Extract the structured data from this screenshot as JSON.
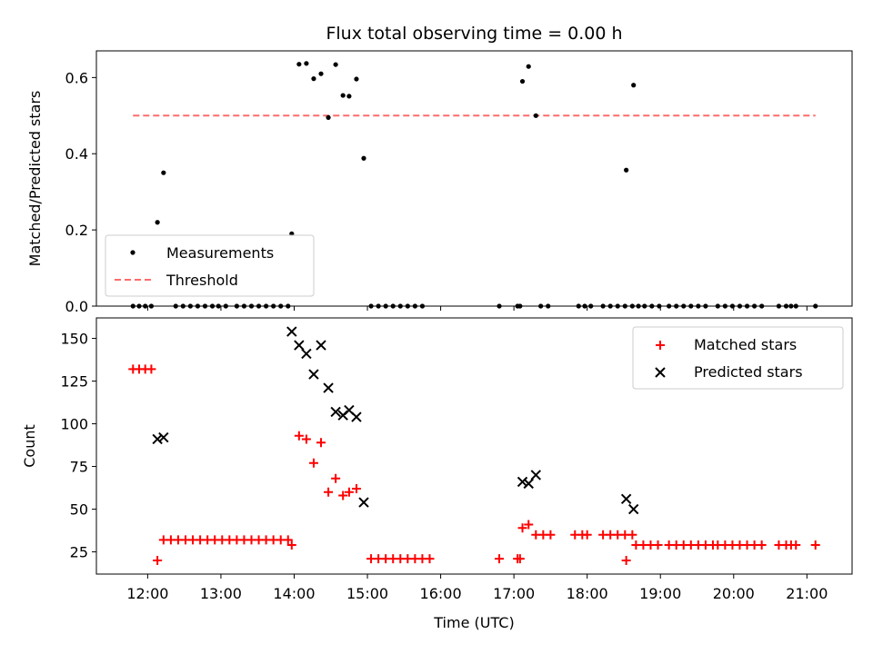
{
  "chart_data": [
    {
      "type": "scatter",
      "title": "Flux total observing time = 0.00 h",
      "xlabel": "",
      "ylabel": "Matched/Predicted stars",
      "xlim": [
        "11:18",
        "21:37"
      ],
      "ylim": [
        0,
        0.67
      ],
      "yticks": [
        0.0,
        0.2,
        0.4,
        0.6
      ],
      "grid": false,
      "legend_position": "lower-left",
      "colors": {
        "measurements": "#000000",
        "threshold": "#ff6b6b"
      },
      "series": [
        {
          "name": "Measurements",
          "marker": "dot",
          "points": [
            [
              "11:48",
              0.0
            ],
            [
              "11:53",
              0.0
            ],
            [
              "11:58",
              0.0
            ],
            [
              "12:03",
              0.0
            ],
            [
              "12:08",
              0.22
            ],
            [
              "12:13",
              0.35
            ],
            [
              "12:23",
              0.0
            ],
            [
              "12:29",
              0.0
            ],
            [
              "12:35",
              0.0
            ],
            [
              "12:41",
              0.0
            ],
            [
              "12:47",
              0.0
            ],
            [
              "12:53",
              0.0
            ],
            [
              "12:58",
              0.0
            ],
            [
              "13:04",
              0.0
            ],
            [
              "13:13",
              0.0
            ],
            [
              "13:19",
              0.0
            ],
            [
              "13:25",
              0.0
            ],
            [
              "13:31",
              0.0
            ],
            [
              "13:37",
              0.0
            ],
            [
              "13:43",
              0.0
            ],
            [
              "13:49",
              0.0
            ],
            [
              "13:55",
              0.0
            ],
            [
              "13:58",
              0.19
            ],
            [
              "14:04",
              0.635
            ],
            [
              "14:10",
              0.637
            ],
            [
              "14:16",
              0.597
            ],
            [
              "14:22",
              0.61
            ],
            [
              "14:28",
              0.495
            ],
            [
              "14:34",
              0.634
            ],
            [
              "14:40",
              0.553
            ],
            [
              "14:45",
              0.551
            ],
            [
              "14:51",
              0.596
            ],
            [
              "14:57",
              0.388
            ],
            [
              "15:03",
              0.0
            ],
            [
              "15:09",
              0.0
            ],
            [
              "15:15",
              0.0
            ],
            [
              "15:21",
              0.0
            ],
            [
              "15:27",
              0.0
            ],
            [
              "15:33",
              0.0
            ],
            [
              "15:39",
              0.0
            ],
            [
              "15:45",
              0.0
            ],
            [
              "16:48",
              0.0
            ],
            [
              "17:03",
              0.0
            ],
            [
              "17:05",
              0.0
            ],
            [
              "17:07",
              0.59
            ],
            [
              "17:12",
              0.629
            ],
            [
              "17:18",
              0.5
            ],
            [
              "17:22",
              0.0
            ],
            [
              "17:28",
              0.0
            ],
            [
              "17:53",
              0.0
            ],
            [
              "17:58",
              0.0
            ],
            [
              "18:03",
              0.0
            ],
            [
              "18:13",
              0.0
            ],
            [
              "18:19",
              0.0
            ],
            [
              "18:25",
              0.0
            ],
            [
              "18:31",
              0.0
            ],
            [
              "18:37",
              0.0
            ],
            [
              "18:42",
              0.0
            ],
            [
              "18:32",
              0.357
            ],
            [
              "18:38",
              0.58
            ],
            [
              "18:47",
              0.0
            ],
            [
              "18:53",
              0.0
            ],
            [
              "18:59",
              0.0
            ],
            [
              "19:07",
              0.0
            ],
            [
              "19:13",
              0.0
            ],
            [
              "19:19",
              0.0
            ],
            [
              "19:25",
              0.0
            ],
            [
              "19:31",
              0.0
            ],
            [
              "19:37",
              0.0
            ],
            [
              "19:47",
              0.0
            ],
            [
              "19:53",
              0.0
            ],
            [
              "19:59",
              0.0
            ],
            [
              "20:05",
              0.0
            ],
            [
              "20:11",
              0.0
            ],
            [
              "20:17",
              0.0
            ],
            [
              "20:23",
              0.0
            ],
            [
              "20:37",
              0.0
            ],
            [
              "20:43",
              0.0
            ],
            [
              "20:47",
              0.0
            ],
            [
              "20:51",
              0.0
            ],
            [
              "21:07",
              0.0
            ]
          ]
        },
        {
          "name": "Threshold",
          "style": "dashed",
          "points": [
            [
              "11:48",
              0.5
            ],
            [
              "21:07",
              0.5
            ]
          ]
        }
      ]
    },
    {
      "type": "scatter",
      "title": "",
      "xlabel": "Time (UTC)",
      "ylabel": "Count",
      "xlim": [
        "11:18",
        "21:37"
      ],
      "ylim": [
        12,
        162
      ],
      "yticks": [
        25,
        50,
        75,
        100,
        125,
        150
      ],
      "xticks": [
        "12:00",
        "13:00",
        "14:00",
        "15:00",
        "16:00",
        "17:00",
        "18:00",
        "19:00",
        "20:00",
        "21:00"
      ],
      "grid": false,
      "legend_position": "top-right",
      "colors": {
        "matched": "#ff0000",
        "predicted": "#000000"
      },
      "series": [
        {
          "name": "Matched stars",
          "marker": "plus",
          "points": [
            [
              "11:48",
              132
            ],
            [
              "11:53",
              132
            ],
            [
              "11:58",
              132
            ],
            [
              "12:03",
              132
            ],
            [
              "12:08",
              20
            ],
            [
              "12:13",
              32
            ],
            [
              "12:19",
              32
            ],
            [
              "12:25",
              32
            ],
            [
              "12:31",
              32
            ],
            [
              "12:37",
              32
            ],
            [
              "12:43",
              32
            ],
            [
              "12:49",
              32
            ],
            [
              "12:55",
              32
            ],
            [
              "13:01",
              32
            ],
            [
              "13:07",
              32
            ],
            [
              "13:13",
              32
            ],
            [
              "13:19",
              32
            ],
            [
              "13:25",
              32
            ],
            [
              "13:31",
              32
            ],
            [
              "13:37",
              32
            ],
            [
              "13:43",
              32
            ],
            [
              "13:49",
              32
            ],
            [
              "13:55",
              32
            ],
            [
              "13:58",
              29
            ],
            [
              "14:04",
              93
            ],
            [
              "14:10",
              91
            ],
            [
              "14:16",
              77
            ],
            [
              "14:22",
              89
            ],
            [
              "14:28",
              60
            ],
            [
              "14:34",
              68
            ],
            [
              "14:40",
              58
            ],
            [
              "14:45",
              60
            ],
            [
              "14:51",
              62
            ],
            [
              "15:03",
              21
            ],
            [
              "15:09",
              21
            ],
            [
              "15:15",
              21
            ],
            [
              "15:21",
              21
            ],
            [
              "15:27",
              21
            ],
            [
              "15:33",
              21
            ],
            [
              "15:39",
              21
            ],
            [
              "15:45",
              21
            ],
            [
              "15:51",
              21
            ],
            [
              "16:48",
              21
            ],
            [
              "17:03",
              21
            ],
            [
              "17:05",
              21
            ],
            [
              "17:07",
              39
            ],
            [
              "17:12",
              41
            ],
            [
              "17:18",
              35
            ],
            [
              "17:24",
              35
            ],
            [
              "17:30",
              35
            ],
            [
              "17:50",
              35
            ],
            [
              "17:56",
              35
            ],
            [
              "18:00",
              35
            ],
            [
              "18:13",
              35
            ],
            [
              "18:19",
              35
            ],
            [
              "18:25",
              35
            ],
            [
              "18:31",
              35
            ],
            [
              "18:37",
              35
            ],
            [
              "18:32",
              20
            ],
            [
              "18:40",
              29
            ],
            [
              "18:46",
              29
            ],
            [
              "18:52",
              29
            ],
            [
              "18:58",
              29
            ],
            [
              "19:07",
              29
            ],
            [
              "19:13",
              29
            ],
            [
              "19:19",
              29
            ],
            [
              "19:25",
              29
            ],
            [
              "19:31",
              29
            ],
            [
              "19:37",
              29
            ],
            [
              "19:43",
              29
            ],
            [
              "19:47",
              29
            ],
            [
              "19:53",
              29
            ],
            [
              "19:59",
              29
            ],
            [
              "20:05",
              29
            ],
            [
              "20:11",
              29
            ],
            [
              "20:17",
              29
            ],
            [
              "20:23",
              29
            ],
            [
              "20:37",
              29
            ],
            [
              "20:43",
              29
            ],
            [
              "20:47",
              29
            ],
            [
              "20:51",
              29
            ],
            [
              "21:07",
              29
            ]
          ]
        },
        {
          "name": "Predicted stars",
          "marker": "x",
          "points": [
            [
              "12:08",
              91
            ],
            [
              "12:13",
              92
            ],
            [
              "13:58",
              154
            ],
            [
              "14:04",
              146
            ],
            [
              "14:10",
              141
            ],
            [
              "14:16",
              129
            ],
            [
              "14:22",
              146
            ],
            [
              "14:28",
              121
            ],
            [
              "14:34",
              107
            ],
            [
              "14:40",
              105
            ],
            [
              "14:45",
              108
            ],
            [
              "14:51",
              104
            ],
            [
              "14:57",
              54
            ],
            [
              "17:07",
              66
            ],
            [
              "17:12",
              65
            ],
            [
              "17:18",
              70
            ],
            [
              "18:32",
              56
            ],
            [
              "18:38",
              50
            ]
          ]
        }
      ]
    }
  ]
}
